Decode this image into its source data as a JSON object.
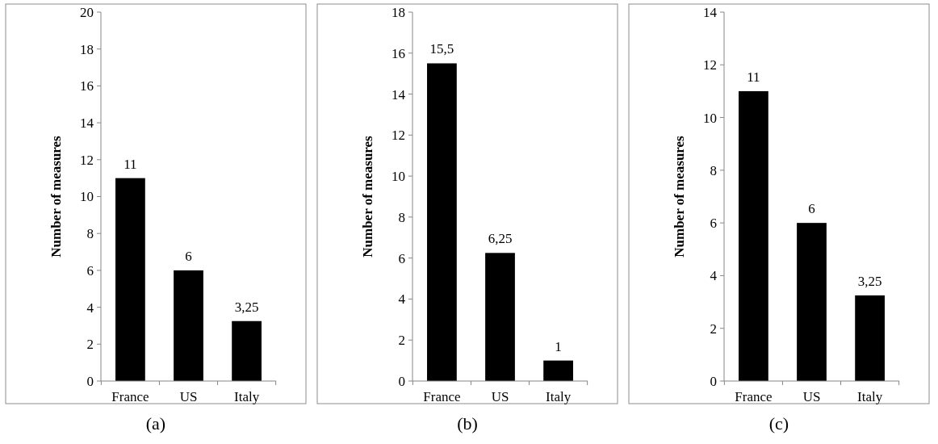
{
  "chart_data": [
    {
      "type": "bar",
      "categories": [
        "France",
        "US",
        "Italy"
      ],
      "values": [
        11,
        6,
        3.25
      ],
      "value_labels": [
        "11",
        "6",
        "3,25"
      ],
      "color": "#000000",
      "ylabel": "Number of measures",
      "ylim": [
        0,
        20
      ],
      "yticks": [
        0,
        2,
        4,
        6,
        8,
        10,
        12,
        14,
        16,
        18,
        20
      ],
      "grid": false,
      "annotations": [
        "(a)"
      ]
    },
    {
      "type": "bar",
      "categories": [
        "France",
        "US",
        "Italy"
      ],
      "values": [
        15.5,
        6.25,
        1
      ],
      "value_labels": [
        "15,5",
        "6,25",
        "1"
      ],
      "color": "#000000",
      "ylabel": "Number of measures",
      "ylim": [
        0,
        18
      ],
      "yticks": [
        0,
        2,
        4,
        6,
        8,
        10,
        12,
        14,
        16,
        18
      ],
      "grid": false,
      "annotations": [
        "(b)"
      ]
    },
    {
      "type": "bar",
      "categories": [
        "France",
        "US",
        "Italy"
      ],
      "values": [
        11,
        6,
        3.25
      ],
      "value_labels": [
        "11",
        "6",
        "3,25"
      ],
      "color": "#000000",
      "ylabel": "Number of measures",
      "ylim": [
        0,
        14
      ],
      "yticks": [
        0,
        2,
        4,
        6,
        8,
        10,
        12,
        14
      ],
      "grid": false,
      "annotations": [
        "(c)"
      ]
    }
  ]
}
